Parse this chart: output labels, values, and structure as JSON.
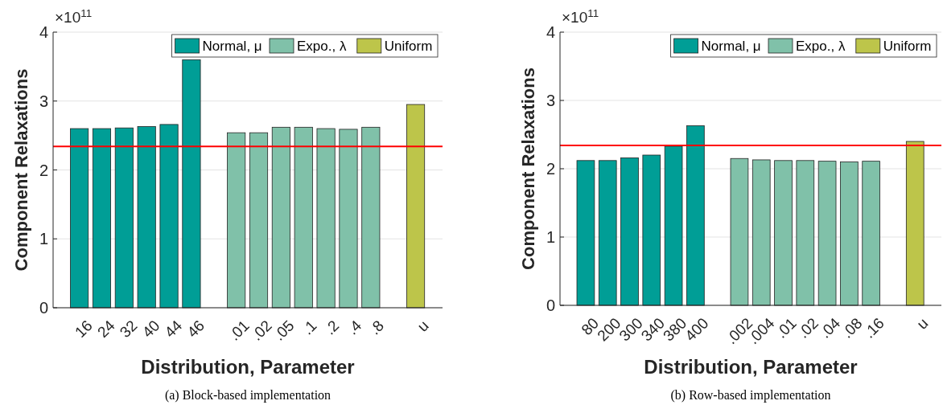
{
  "chart_data": [
    {
      "type": "bar",
      "xlabel": "Distribution, Parameter",
      "ylabel": "Component Relaxations",
      "categories": [
        "16",
        "24",
        "32",
        "40",
        "44",
        "46",
        null,
        ".01",
        ".02",
        ".05",
        ".1",
        ".2",
        ".4",
        ".8",
        null,
        "u"
      ],
      "series": [
        {
          "name": "Normal, μ",
          "color": "#009e96",
          "values": [
            2.6,
            2.6,
            2.61,
            2.63,
            2.66,
            3.6,
            null,
            null,
            null,
            null,
            null,
            null,
            null,
            null,
            null,
            null
          ]
        },
        {
          "name": "Expo., λ",
          "color": "#80c1a9",
          "values": [
            null,
            null,
            null,
            null,
            null,
            null,
            null,
            2.54,
            2.54,
            2.62,
            2.62,
            2.6,
            2.59,
            2.62,
            null,
            null
          ]
        },
        {
          "name": "Uniform",
          "color": "#bdc54a",
          "values": [
            null,
            null,
            null,
            null,
            null,
            null,
            null,
            null,
            null,
            null,
            null,
            null,
            null,
            null,
            null,
            2.95
          ]
        }
      ],
      "ylim": [
        0,
        4
      ],
      "yticks": [
        0,
        1,
        2,
        3,
        4
      ],
      "grid": "y",
      "legend": "top right",
      "ref_lines": [
        {
          "axis": "y",
          "value": 2.34,
          "color": "#ff0000"
        }
      ],
      "annotations": [
        "×10$^{11}$",
        "(a) Block-based implementation"
      ]
    },
    {
      "type": "bar",
      "xlabel": "Distribution, Parameter",
      "ylabel": "Component Relaxations",
      "categories": [
        "80",
        "200",
        "300",
        "340",
        "380",
        "400",
        null,
        ".002",
        ".004",
        ".01",
        ".02",
        ".04",
        ".08",
        ".16",
        null,
        "u"
      ],
      "series": [
        {
          "name": "Normal, μ",
          "color": "#009e96",
          "values": [
            2.12,
            2.12,
            2.16,
            2.2,
            2.33,
            2.63,
            null,
            null,
            null,
            null,
            null,
            null,
            null,
            null,
            null,
            null
          ]
        },
        {
          "name": "Expo., λ",
          "color": "#80c1a9",
          "values": [
            null,
            null,
            null,
            null,
            null,
            null,
            null,
            2.15,
            2.13,
            2.12,
            2.12,
            2.11,
            2.1,
            2.11,
            null,
            null
          ]
        },
        {
          "name": "Uniform",
          "color": "#bdc54a",
          "values": [
            null,
            null,
            null,
            null,
            null,
            null,
            null,
            null,
            null,
            null,
            null,
            null,
            null,
            null,
            null,
            2.4
          ]
        }
      ],
      "ylim": [
        0,
        4
      ],
      "yticks": [
        0,
        1,
        2,
        3,
        4
      ],
      "grid": "y",
      "legend": "top right",
      "ref_lines": [
        {
          "axis": "y",
          "value": 2.34,
          "color": "#ff0000"
        }
      ],
      "annotations": [
        "×10$^{11}$",
        "(b) Row-based implementation"
      ]
    }
  ]
}
